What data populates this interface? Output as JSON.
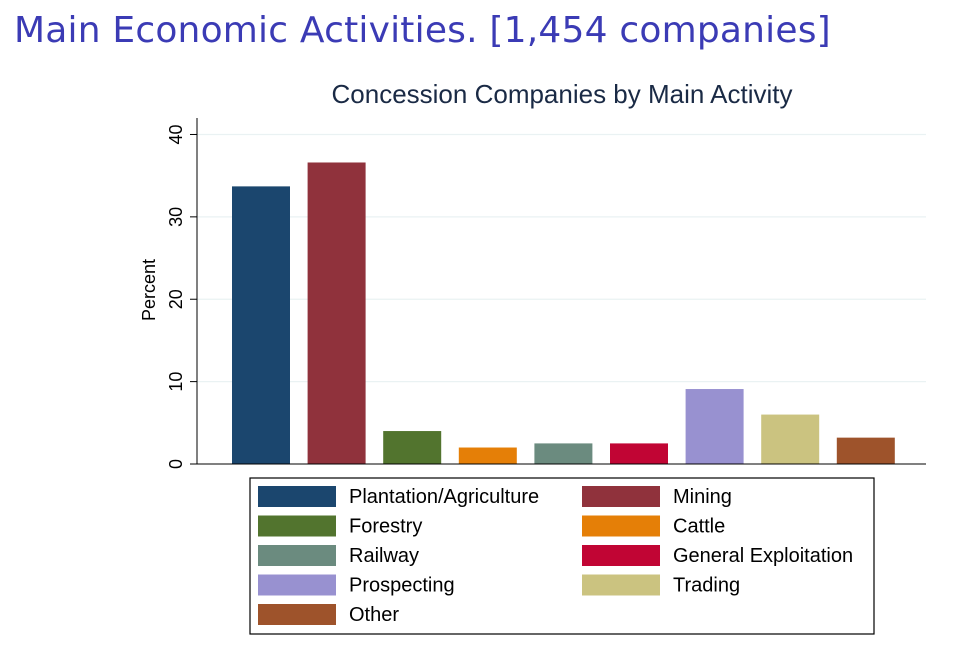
{
  "slide": {
    "title": "Main Economic Activities. [1,454 companies]"
  },
  "chart_data": {
    "type": "bar",
    "title": "Concession Companies by Main Activity",
    "xlabel": "",
    "ylabel": "Percent",
    "ylim": [
      0,
      42
    ],
    "yticks": [
      0,
      10,
      20,
      30,
      40
    ],
    "grid": true,
    "legend_position": "bottom",
    "categories": [
      "Plantation/Agriculture",
      "Mining",
      "Forestry",
      "Cattle",
      "Railway",
      "General Exploitation",
      "Prospecting",
      "Trading",
      "Other"
    ],
    "values": [
      33.7,
      36.6,
      4.0,
      2.0,
      2.5,
      2.5,
      9.1,
      6.0,
      3.2
    ],
    "colors": [
      "#1b466e",
      "#90323c",
      "#52742e",
      "#e57f07",
      "#6b8b7f",
      "#c10534",
      "#9891d0",
      "#cbc380",
      "#9e532b"
    ]
  }
}
